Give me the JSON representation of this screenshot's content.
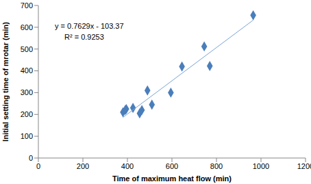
{
  "chart_data": {
    "type": "scatter",
    "x_label": "Time of maximum heat flow (min)",
    "y_label": "Initial setting time of mrotar (min)",
    "annotations": [
      "y = 0.7629x - 103.37",
      "R² = 0.9253"
    ],
    "series": [
      {
        "type": "scatter",
        "color": "#4a7ebb",
        "marker": "diamond",
        "x": [
          380,
          390,
          395,
          425,
          455,
          465,
          490,
          510,
          595,
          645,
          745,
          770,
          965
        ],
        "values": [
          210,
          220,
          225,
          230,
          205,
          220,
          310,
          245,
          300,
          420,
          512,
          422,
          655
        ]
      },
      {
        "type": "line",
        "color": "#7aa3d6",
        "line_style": "solid",
        "x": [
          380,
          965
        ],
        "values": [
          186.5,
          632.8
        ]
      }
    ],
    "xlim": [
      0,
      1200
    ],
    "xticks": [
      0,
      200,
      400,
      600,
      800,
      1000,
      1200
    ],
    "ylim": [
      0,
      700
    ],
    "yticks": [
      0,
      100,
      200,
      300,
      400,
      500,
      600,
      700
    ],
    "grid": false
  }
}
